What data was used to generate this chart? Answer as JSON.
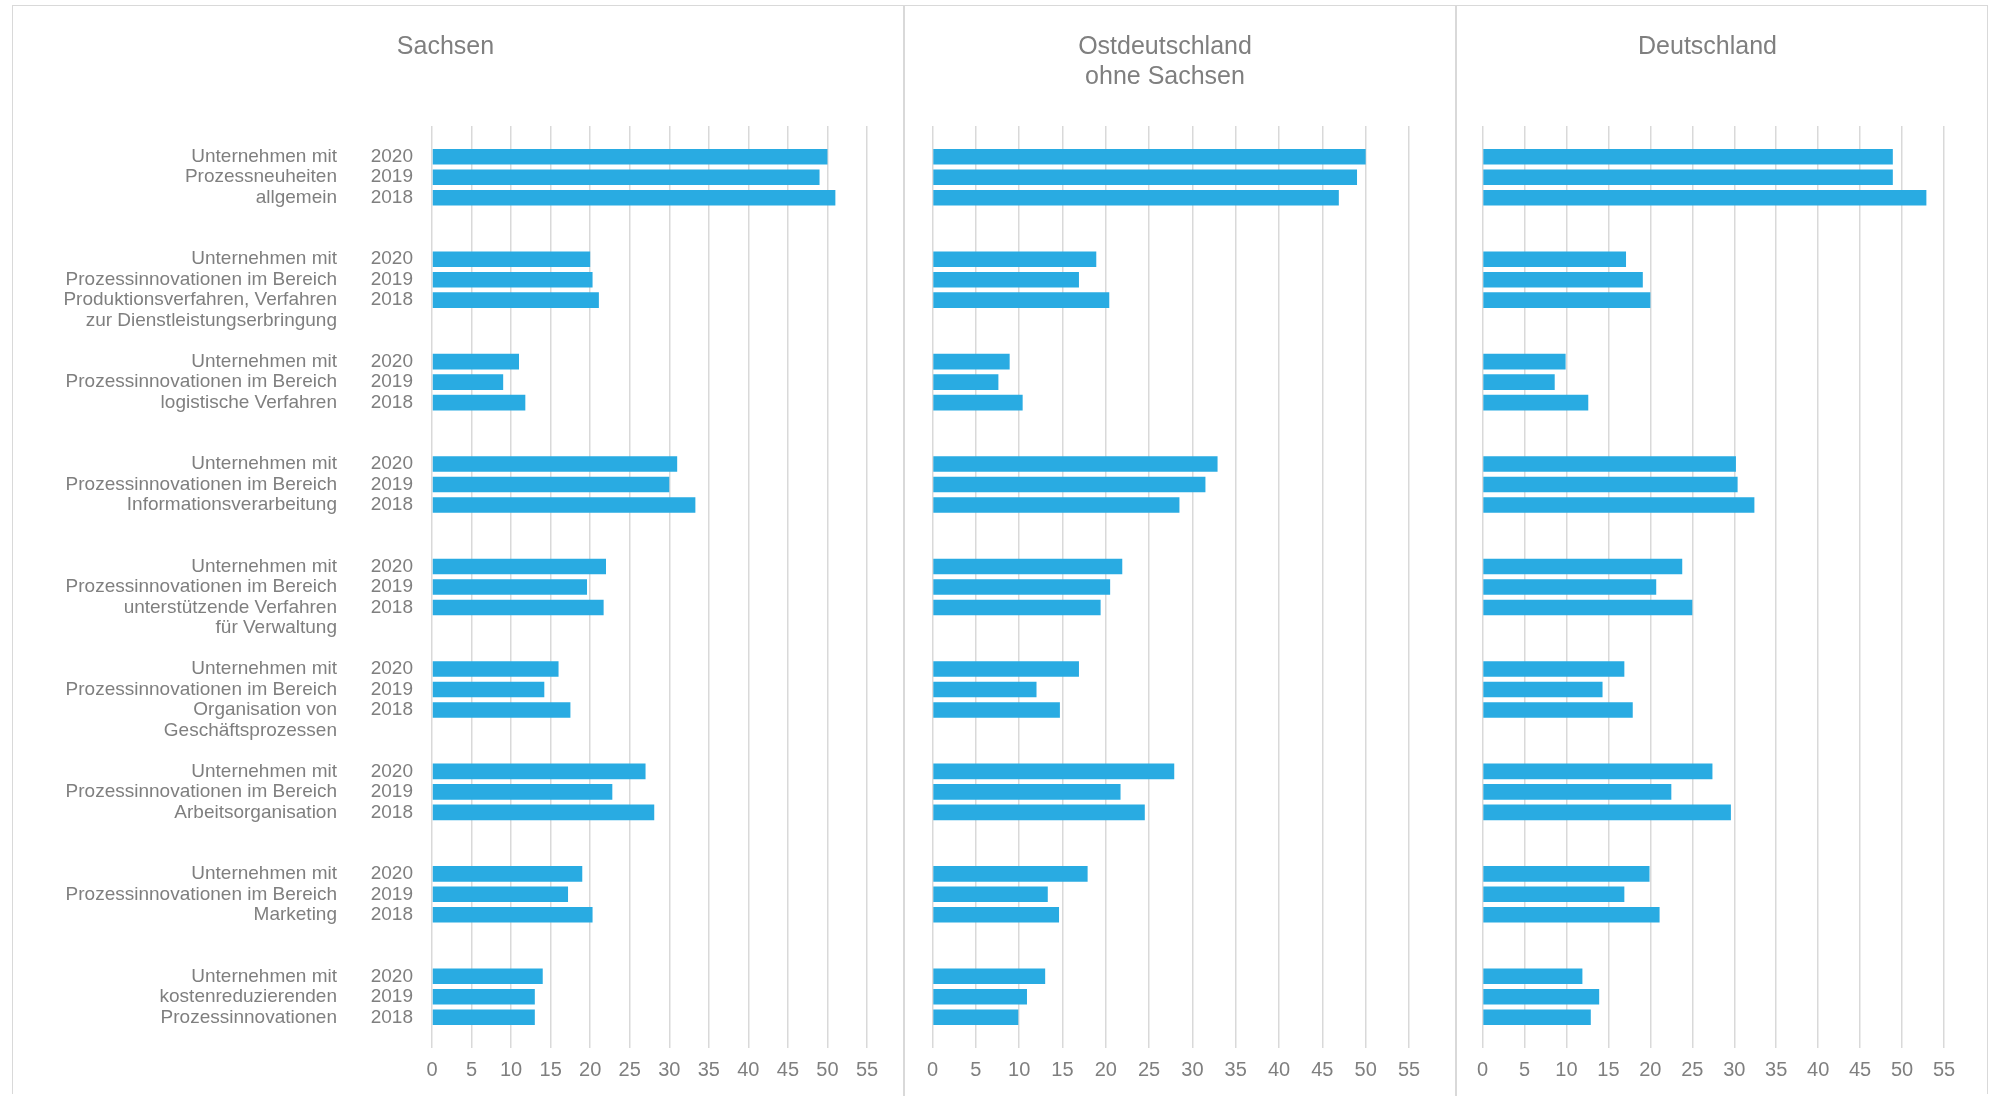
{
  "chart_data": [
    {
      "type": "bar",
      "orientation": "horizontal",
      "title": "Sachsen",
      "categories": [
        "Unternehmen mit\nProzessneuheiten\nallgemein",
        "Unternehmen mit\nProzessinnovationen im Bereich\nProduktionsverfahren, Verfahren\nzur Dienstleistungserbringung",
        "Unternehmen mit\nProzessinnovationen im Bereich\nlogistische Verfahren",
        "Unternehmen mit\nProzessinnovationen im Bereich\nInformationsverarbeitung",
        "Unternehmen mit\nProzessinnovationen im Bereich\nunterstützende Verfahren\nfür Verwaltung",
        "Unternehmen mit\nProzessinnovationen im Bereich\nOrganisation von\nGeschäftsprozessen",
        "Unternehmen mit\nProzessinnovationen im Bereich\nArbeitsorganisation",
        "Unternehmen mit\nProzessinnovationen im Bereich\nMarketing",
        "Unternehmen mit\nkostenreduzierenden\nProzessinnovationen"
      ],
      "series": [
        {
          "name": "2020",
          "color": "#29abe2",
          "values": [
            50,
            20,
            11,
            31,
            22,
            16,
            27,
            19,
            14
          ]
        },
        {
          "name": "2019",
          "color": "#29abe2",
          "values": [
            49,
            20.3,
            9,
            30,
            19.6,
            14.2,
            22.8,
            17.2,
            13
          ]
        },
        {
          "name": "2018",
          "color": "#29abe2",
          "values": [
            51,
            21.1,
            11.8,
            33.3,
            21.7,
            17.5,
            28.1,
            20.3,
            13
          ]
        }
      ],
      "xlim": [
        0,
        55
      ],
      "xticks": [
        0,
        5,
        10,
        15,
        20,
        25,
        30,
        35,
        40,
        45,
        50,
        55
      ],
      "grid": "x"
    },
    {
      "type": "bar",
      "orientation": "horizontal",
      "title": "Ostdeutschland\nohne Sachsen",
      "categories": [
        null,
        null,
        null,
        null,
        null,
        null,
        null,
        null,
        null
      ],
      "series": [
        {
          "color": "#29abe2",
          "values": [
            50,
            18.9,
            8.9,
            32.9,
            21.9,
            16.9,
            27.9,
            17.9,
            13
          ]
        },
        {
          "color": "#29abe2",
          "values": [
            49,
            16.9,
            7.6,
            31.5,
            20.5,
            12,
            21.7,
            13.3,
            10.9
          ]
        },
        {
          "color": "#29abe2",
          "values": [
            46.9,
            20.4,
            10.4,
            28.5,
            19.4,
            14.7,
            24.5,
            14.6,
            9.9
          ]
        }
      ],
      "xlim": [
        0,
        55
      ],
      "xticks": [
        0,
        5,
        10,
        15,
        20,
        25,
        30,
        35,
        40,
        45,
        50,
        55
      ],
      "grid": "x",
      "tick_labels": "x"
    },
    {
      "type": "bar",
      "orientation": "horizontal",
      "title": "Deutschland",
      "categories": [
        null,
        null,
        null,
        null,
        null,
        null,
        null,
        null,
        null
      ],
      "series": [
        {
          "color": "#29abe2",
          "values": [
            48.9,
            17.1,
            9.9,
            30.2,
            23.8,
            16.9,
            27.4,
            19.9,
            11.9
          ]
        },
        {
          "color": "#29abe2",
          "values": [
            48.9,
            19.1,
            8.6,
            30.4,
            20.7,
            14.3,
            22.5,
            16.9,
            13.9
          ]
        },
        {
          "color": "#29abe2",
          "values": [
            52.9,
            20,
            12.6,
            32.4,
            25,
            17.9,
            29.6,
            21.1,
            12.9
          ]
        }
      ],
      "xlim": [
        0,
        55
      ],
      "xticks": [
        0,
        5,
        10,
        15,
        20,
        25,
        30,
        35,
        40,
        45,
        50,
        55
      ],
      "grid": "x",
      "tick_labels": "x"
    }
  ]
}
